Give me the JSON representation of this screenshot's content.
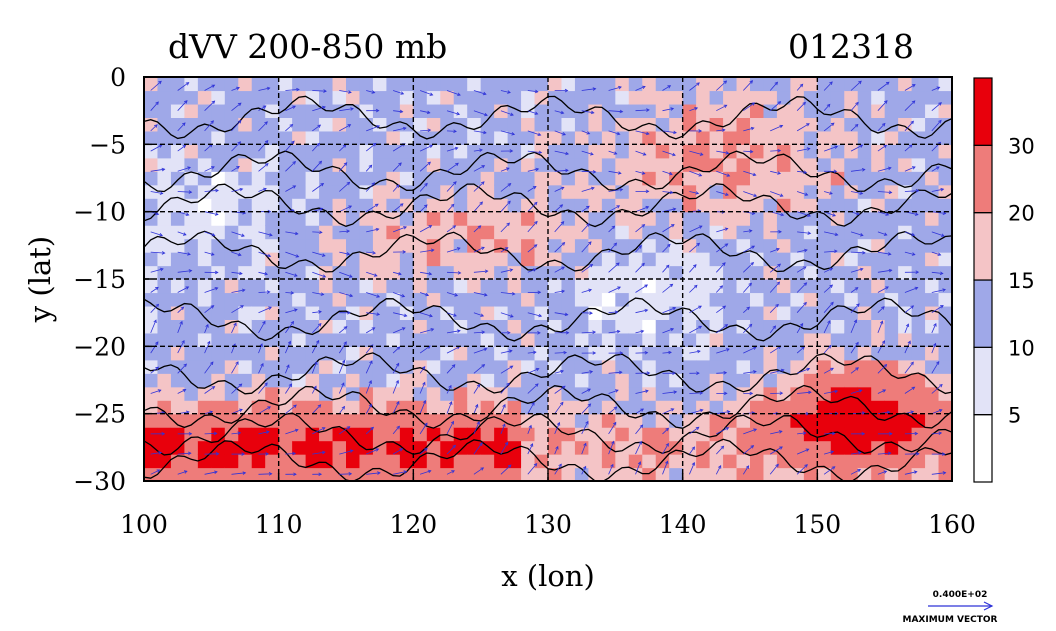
{
  "chart_data": {
    "type": "heatmap",
    "title": "dVV 200-850 mb",
    "date_label": "012318",
    "xlabel": "x (lon)",
    "ylabel": "y (lat)",
    "xlim": [
      100,
      160
    ],
    "ylim": [
      -30,
      0
    ],
    "x_ticks": [
      100,
      110,
      120,
      130,
      140,
      150,
      160
    ],
    "y_ticks": [
      0,
      -5,
      -10,
      -15,
      -20,
      -25,
      -30
    ],
    "grid": true,
    "colorbar": {
      "levels": [
        5,
        10,
        15,
        20,
        30
      ],
      "colors": [
        "#ffffff",
        "#e2e3f7",
        "#9fa8e8",
        "#f4c4c6",
        "#ee7c7a",
        "#e8000c"
      ]
    },
    "vector_legend": {
      "value": "0.400E+02",
      "label": "MAXIMUM VECTOR"
    },
    "vector_color": "#2f33d8"
  }
}
